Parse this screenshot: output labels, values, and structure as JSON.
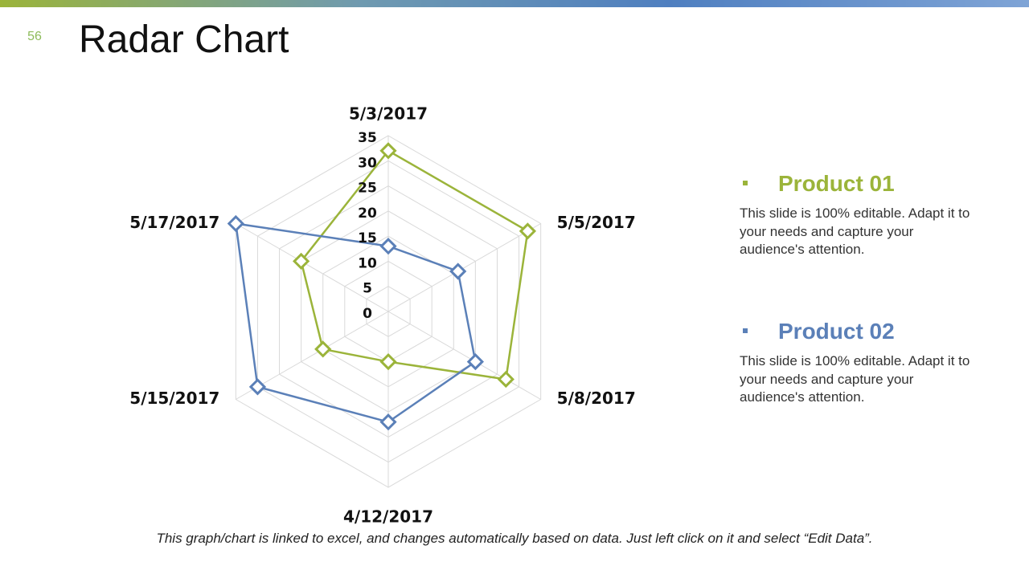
{
  "slide": {
    "number": "56",
    "title": "Radar Chart",
    "footer_note": "This graph/chart is linked to excel, and changes automatically based on data. Just left click on it and select “Edit Data”."
  },
  "colors": {
    "product_01": "#9bb43a",
    "product_02": "#5b80b8",
    "grid": "#d9d9d9",
    "accent_bar": [
      "#9bb43a",
      "#4f7fc0"
    ]
  },
  "legend": [
    {
      "name": "Product 01",
      "color": "#9bb43a",
      "description": "This slide is 100% editable. Adapt it to your needs and capture your audience's attention."
    },
    {
      "name": "Product 02",
      "color": "#5b80b8",
      "description": "This slide is 100% editable. Adapt it to your needs and capture your audience's attention."
    }
  ],
  "chart_data": {
    "type": "radar",
    "categories": [
      "5/3/2017",
      "5/5/2017",
      "5/8/2017",
      "4/12/2017",
      "5/15/2017",
      "5/17/2017"
    ],
    "series": [
      {
        "name": "Product 01",
        "values": [
          32,
          32,
          27,
          10,
          15,
          20
        ],
        "color": "#9bb43a",
        "marker": "diamond"
      },
      {
        "name": "Product 02",
        "values": [
          13,
          16,
          20,
          22,
          30,
          35
        ],
        "color": "#5b80b8",
        "marker": "diamond"
      }
    ],
    "radial_ticks": [
      "0",
      "5",
      "10",
      "15",
      "20",
      "25",
      "30",
      "35"
    ],
    "rmin": 0,
    "rmax": 35,
    "grid": true,
    "legend_position": "right"
  }
}
